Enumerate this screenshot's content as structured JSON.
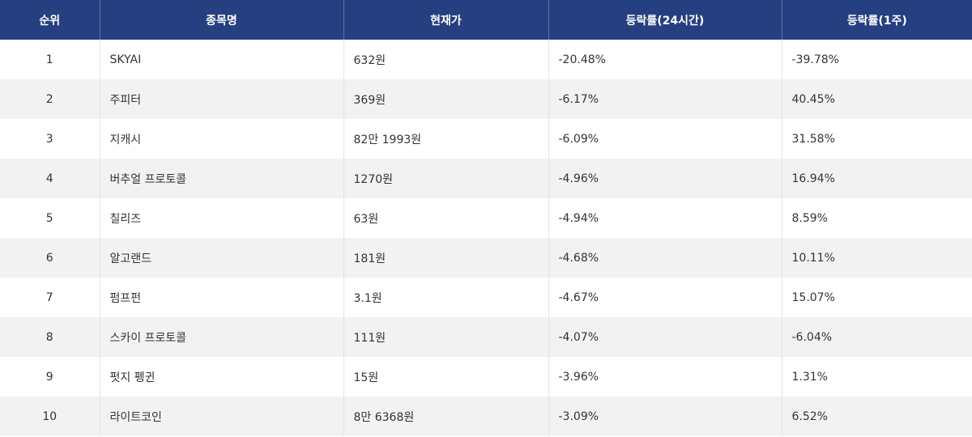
{
  "table": {
    "headers": [
      "순위",
      "종목명",
      "현재가",
      "등락률(24시간)",
      "등락률(1주)"
    ],
    "rows": [
      {
        "rank": "1",
        "name": "SKYAI",
        "price": "632원",
        "change_24h": "-20.48%",
        "change_1w": "-39.78%"
      },
      {
        "rank": "2",
        "name": "주피터",
        "price": "369원",
        "change_24h": "-6.17%",
        "change_1w": "40.45%"
      },
      {
        "rank": "3",
        "name": "지캐시",
        "price": "82만 1993원",
        "change_24h": "-6.09%",
        "change_1w": "31.58%"
      },
      {
        "rank": "4",
        "name": "버추얼 프로토콜",
        "price": "1270원",
        "change_24h": "-4.96%",
        "change_1w": "16.94%"
      },
      {
        "rank": "5",
        "name": "칠리즈",
        "price": "63원",
        "change_24h": "-4.94%",
        "change_1w": "8.59%"
      },
      {
        "rank": "6",
        "name": "알고랜드",
        "price": "181원",
        "change_24h": "-4.68%",
        "change_1w": "10.11%"
      },
      {
        "rank": "7",
        "name": "펌프펀",
        "price": "3.1원",
        "change_24h": "-4.67%",
        "change_1w": "15.07%"
      },
      {
        "rank": "8",
        "name": "스카이 프로토콜",
        "price": "111원",
        "change_24h": "-4.07%",
        "change_1w": "-6.04%"
      },
      {
        "rank": "9",
        "name": "펏지 펭귄",
        "price": "15원",
        "change_24h": "-3.96%",
        "change_1w": "1.31%"
      },
      {
        "rank": "10",
        "name": "라이트코인",
        "price": "8만 6368원",
        "change_24h": "-3.09%",
        "change_1w": "6.52%"
      }
    ]
  }
}
